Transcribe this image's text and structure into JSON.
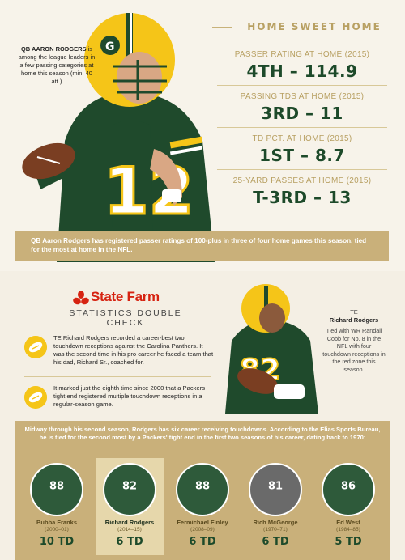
{
  "top": {
    "qb_caption": {
      "name": "QB AARON RODGERS",
      "text": "is among the league leaders in a few passing categories at home this season (min. 40 att.)"
    },
    "section_title": "HOME SWEET HOME",
    "jersey_number": "12",
    "stats": [
      {
        "label": "PASSER RATING AT HOME (2015)",
        "value": "4TH – 114.9"
      },
      {
        "label": "PASSING TDS AT HOME (2015)",
        "value": "3RD – 11"
      },
      {
        "label": "TD PCT. AT HOME (2015)",
        "value": "1ST – 8.7"
      },
      {
        "label": "25-YARD PASSES AT HOME (2015)",
        "value": "T-3RD – 13"
      }
    ],
    "home_note": "QB Aaron Rodgers has registered passer ratings of 100-plus in three of four home games this season, tied for the most at home in the NFL."
  },
  "middle": {
    "brand": "State Farm",
    "section_title": "STATISTICS DOUBLE CHECK",
    "facts": [
      "TE Richard Rodgers recorded a career-best two touchdown receptions against the Carolina Panthers. It was the second time in his pro career he faced a team that his dad, Richard Sr., coached for.",
      "It marked just the eighth time since 2000 that a Packers tight end registered multiple touchdown receptions in a regular-season game."
    ],
    "te_jersey": "82",
    "te_caption": {
      "label": "TE",
      "name": "Richard Rodgers",
      "text": "Tied with WR Randall Cobb for No. 8 in the NFL with four touchdown receptions in the red zone this season."
    }
  },
  "bottom": {
    "intro": "Midway through his second season, Rodgers has six career receiving touchdowns. According to the Elias Sports Bureau, he is tied for the second most by a Packers' tight end in the first two seasons of his career, dating back to 1970:",
    "players": [
      {
        "name": "Bubba Franks",
        "years": "(2000–01)",
        "tds": "10 TD",
        "jersey": "88"
      },
      {
        "name": "Richard Rodgers",
        "years": "(2014–15)",
        "tds": "6 TD",
        "jersey": "82"
      },
      {
        "name": "Fermichael Finley",
        "years": "(2008–09)",
        "tds": "6 TD",
        "jersey": "88"
      },
      {
        "name": "Rich McGeorge",
        "years": "(1970–71)",
        "tds": "6 TD",
        "jersey": "81"
      },
      {
        "name": "Ed West",
        "years": "(1984–85)",
        "tds": "5 TD",
        "jersey": "86"
      }
    ]
  },
  "colors": {
    "gold": "#c9b07a",
    "packers_green": "#1d4a2a",
    "packers_yellow": "#f5c518",
    "state_farm_red": "#d62311"
  }
}
